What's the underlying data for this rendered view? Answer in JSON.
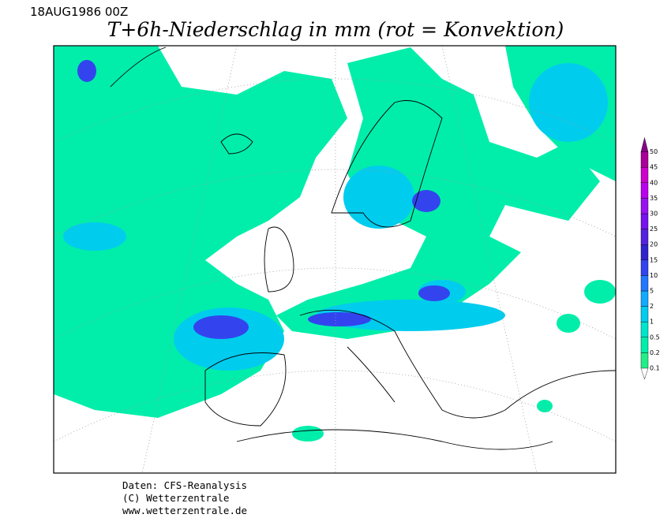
{
  "header": {
    "date": "18AUG1986 00Z",
    "title": "T+6h-Niederschlag in mm (rot = Konvektion)"
  },
  "legend": {
    "levels": [
      0.1,
      0.2,
      0.5,
      1,
      2,
      5,
      10,
      15,
      20,
      25,
      30,
      35,
      40,
      45,
      50
    ],
    "colors": [
      "#22ee88",
      "#00eeaa",
      "#00e6cc",
      "#00ccee",
      "#11aaff",
      "#2277ff",
      "#3344ee",
      "#3322cc",
      "#5522dd",
      "#7711ee",
      "#9911ee",
      "#bb00ee",
      "#cc00cc",
      "#aa0099",
      "#880088"
    ]
  },
  "footer": {
    "lines": [
      "Daten: CFS-Reanalysis",
      "(C) Wetterzentrale",
      "www.wetterzentrale.de"
    ]
  }
}
